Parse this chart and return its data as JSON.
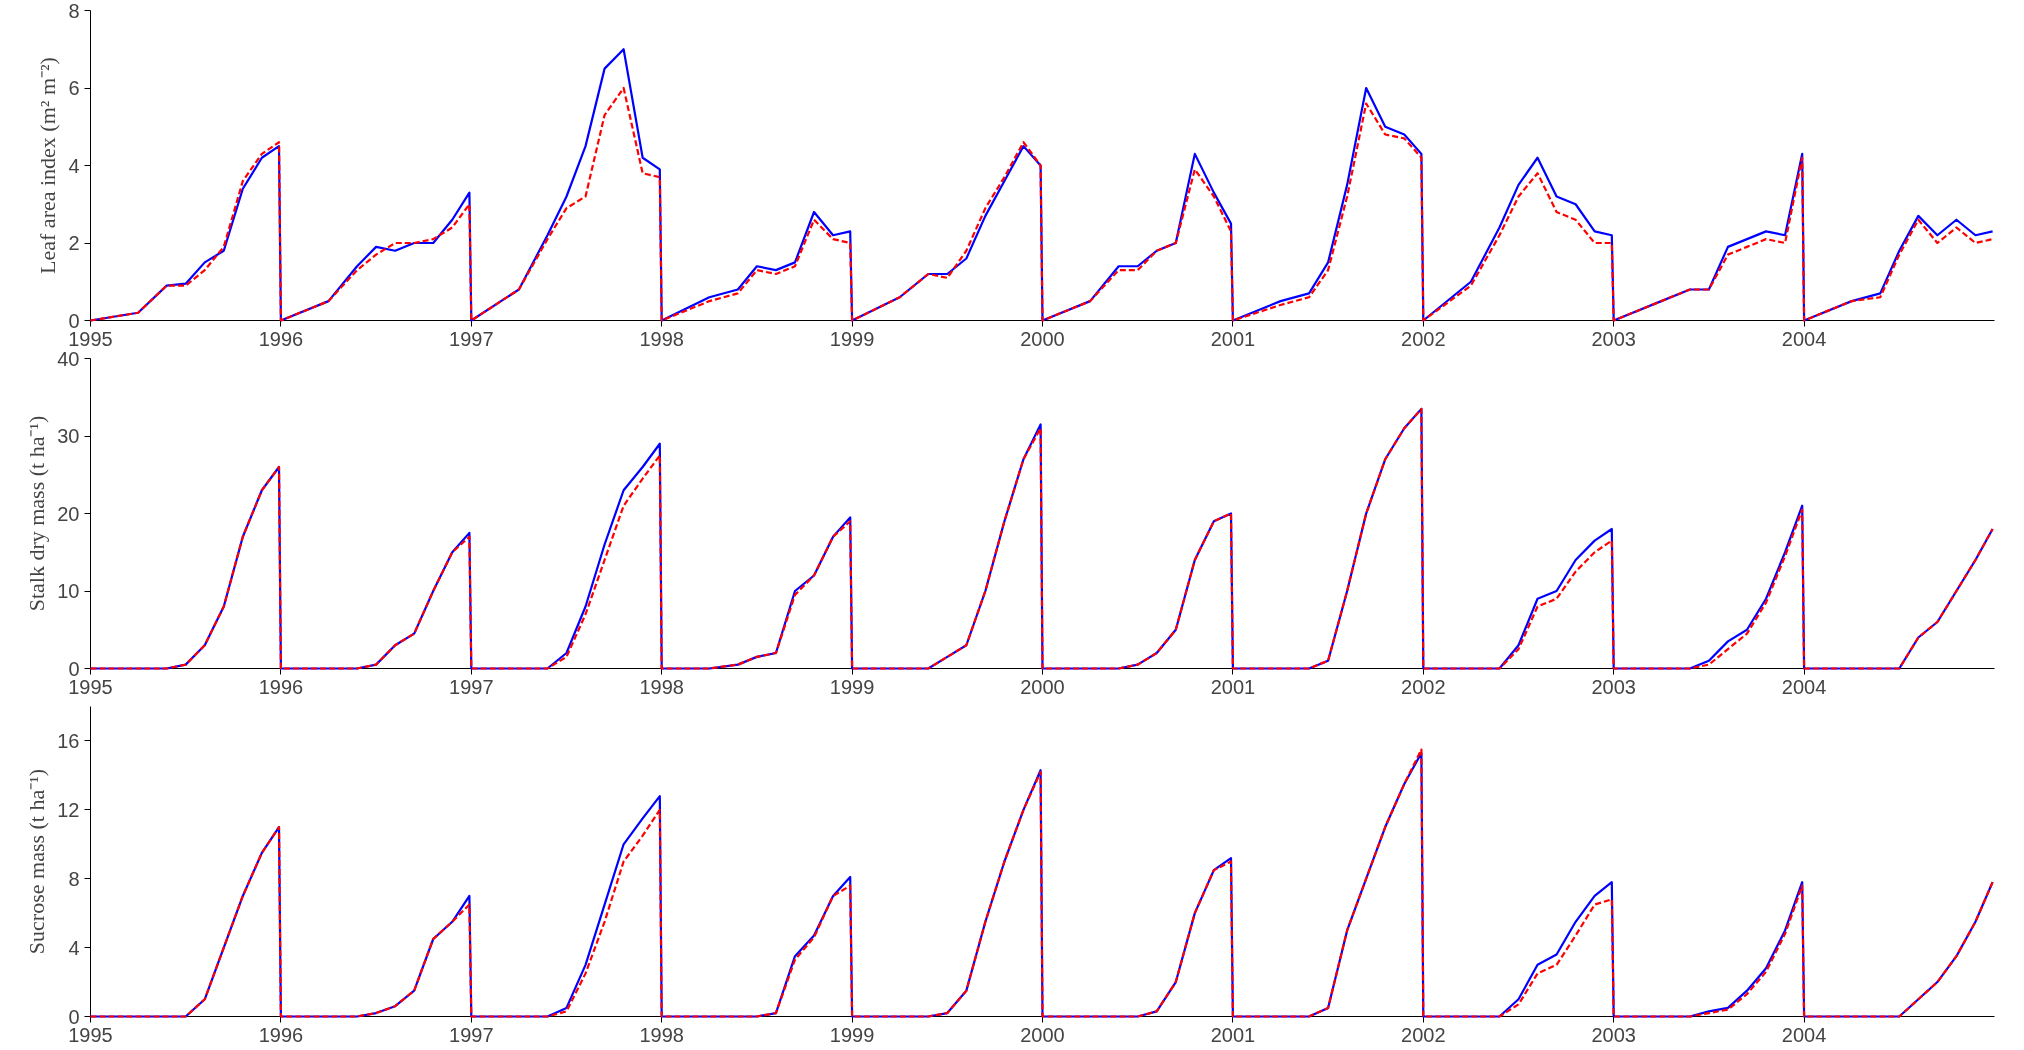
{
  "chart_data": [
    {
      "type": "line",
      "ylabel": "Leaf area index (m² m⁻²)",
      "xlim": [
        1995,
        2005
      ],
      "xticks": [
        1995,
        1996,
        1997,
        1998,
        1999,
        2000,
        2001,
        2002,
        2003,
        2004
      ],
      "ylim": [
        0,
        8
      ],
      "yticks": [
        0,
        2,
        4,
        6,
        8
      ],
      "grid": false,
      "x": [
        1995,
        1995.25,
        1995.4,
        1995.5,
        1995.6,
        1995.7,
        1995.8,
        1995.9,
        1995.99,
        1996,
        1996.25,
        1996.4,
        1996.5,
        1996.6,
        1996.7,
        1996.8,
        1996.9,
        1996.99,
        1997,
        1997.25,
        1997.4,
        1997.5,
        1997.6,
        1997.7,
        1997.8,
        1997.9,
        1997.99,
        1998,
        1998.25,
        1998.4,
        1998.5,
        1998.6,
        1998.7,
        1998.8,
        1998.9,
        1998.99,
        1999,
        1999.25,
        1999.4,
        1999.5,
        1999.6,
        1999.7,
        1999.8,
        1999.9,
        1999.99,
        2000,
        2000.25,
        2000.4,
        2000.5,
        2000.6,
        2000.7,
        2000.8,
        2000.9,
        2000.99,
        2001,
        2001.25,
        2001.4,
        2001.5,
        2001.6,
        2001.7,
        2001.8,
        2001.9,
        2001.99,
        2002,
        2002.25,
        2002.4,
        2002.5,
        2002.6,
        2002.7,
        2002.8,
        2002.9,
        2002.99,
        2003,
        2003.25,
        2003.4,
        2003.5,
        2003.6,
        2003.7,
        2003.8,
        2003.9,
        2003.99,
        2004,
        2004.25,
        2004.4,
        2004.5,
        2004.6,
        2004.7,
        2004.8,
        2004.9,
        2004.99
      ],
      "series": [
        {
          "color": "#0000ff",
          "line_style": "solid",
          "values": [
            0,
            0.2,
            0.9,
            0.95,
            1.5,
            1.8,
            3.4,
            4.2,
            4.5,
            0,
            0.5,
            1.4,
            1.9,
            1.8,
            2.0,
            2.0,
            2.6,
            3.3,
            0,
            0.8,
            2.2,
            3.2,
            4.5,
            6.5,
            7.0,
            4.2,
            3.9,
            0,
            0.6,
            0.8,
            1.4,
            1.3,
            1.5,
            2.8,
            2.2,
            2.3,
            0,
            0.6,
            1.2,
            1.2,
            1.6,
            2.7,
            3.6,
            4.5,
            4.0,
            0,
            0.5,
            1.4,
            1.4,
            1.8,
            2.0,
            4.3,
            3.3,
            2.5,
            0,
            0.5,
            0.7,
            1.5,
            3.5,
            6.0,
            5.0,
            4.8,
            4.3,
            0,
            1.0,
            2.4,
            3.5,
            4.2,
            3.2,
            3.0,
            2.3,
            2.2,
            0,
            0.5,
            0.8,
            0.8,
            1.9,
            2.1,
            2.3,
            2.2,
            4.3,
            0,
            0.5,
            0.7,
            1.8,
            2.7,
            2.2,
            2.6,
            2.2,
            2.3
          ]
        },
        {
          "color": "#ff0000",
          "line_style": "dashed",
          "values": [
            0,
            0.2,
            0.9,
            0.9,
            1.3,
            1.9,
            3.6,
            4.3,
            4.6,
            0,
            0.5,
            1.3,
            1.7,
            2.0,
            2.0,
            2.1,
            2.4,
            3.0,
            0,
            0.8,
            2.1,
            2.9,
            3.2,
            5.3,
            6.0,
            3.8,
            3.7,
            0,
            0.5,
            0.7,
            1.3,
            1.2,
            1.4,
            2.6,
            2.1,
            2.0,
            0,
            0.6,
            1.2,
            1.1,
            1.8,
            2.9,
            3.7,
            4.6,
            4.0,
            0,
            0.5,
            1.3,
            1.3,
            1.8,
            2.0,
            3.9,
            3.2,
            2.3,
            0,
            0.4,
            0.6,
            1.3,
            3.2,
            5.6,
            4.8,
            4.7,
            4.2,
            0,
            0.9,
            2.2,
            3.2,
            3.8,
            2.8,
            2.6,
            2.0,
            2.0,
            0,
            0.5,
            0.8,
            0.8,
            1.7,
            1.9,
            2.1,
            2.0,
            4.2,
            0,
            0.5,
            0.6,
            1.7,
            2.6,
            2.0,
            2.4,
            2.0,
            2.1
          ]
        }
      ]
    },
    {
      "type": "line",
      "ylabel": "Stalk dry mass (t ha⁻¹)",
      "xlim": [
        1995,
        2005
      ],
      "xticks": [
        1995,
        1996,
        1997,
        1998,
        1999,
        2000,
        2001,
        2002,
        2003,
        2004
      ],
      "ylim": [
        0,
        40
      ],
      "yticks": [
        0,
        10,
        20,
        30,
        40
      ],
      "grid": false,
      "x": [
        1995,
        1995.25,
        1995.4,
        1995.5,
        1995.6,
        1995.7,
        1995.8,
        1995.9,
        1995.99,
        1996,
        1996.25,
        1996.4,
        1996.5,
        1996.6,
        1996.7,
        1996.8,
        1996.9,
        1996.99,
        1997,
        1997.25,
        1997.4,
        1997.5,
        1997.6,
        1997.7,
        1997.8,
        1997.9,
        1997.99,
        1998,
        1998.25,
        1998.4,
        1998.5,
        1998.6,
        1998.7,
        1998.8,
        1998.9,
        1998.99,
        1999,
        1999.25,
        1999.4,
        1999.5,
        1999.6,
        1999.7,
        1999.8,
        1999.9,
        1999.99,
        2000,
        2000.25,
        2000.4,
        2000.5,
        2000.6,
        2000.7,
        2000.8,
        2000.9,
        2000.99,
        2001,
        2001.25,
        2001.4,
        2001.5,
        2001.6,
        2001.7,
        2001.8,
        2001.9,
        2001.99,
        2002,
        2002.25,
        2002.4,
        2002.5,
        2002.6,
        2002.7,
        2002.8,
        2002.9,
        2002.99,
        2003,
        2003.25,
        2003.4,
        2003.5,
        2003.6,
        2003.7,
        2003.8,
        2003.9,
        2003.99,
        2004,
        2004.25,
        2004.4,
        2004.5,
        2004.6,
        2004.7,
        2004.8,
        2004.9,
        2004.99
      ],
      "series": [
        {
          "color": "#0000ff",
          "line_style": "solid",
          "values": [
            0,
            0,
            0,
            0.5,
            3,
            8,
            17,
            23,
            26,
            0,
            0,
            0,
            0.5,
            3,
            4.5,
            10,
            15,
            17.5,
            0,
            0,
            0,
            2,
            8,
            16,
            23,
            26,
            29,
            0,
            0,
            0.5,
            1.5,
            2,
            10,
            12,
            17,
            19.5,
            0,
            0,
            0,
            1.5,
            3,
            10,
            19,
            27,
            31.5,
            0,
            0,
            0,
            0.5,
            2,
            5,
            14,
            19,
            20,
            0,
            0,
            0,
            1,
            10,
            20,
            27,
            31,
            33.5,
            0,
            0,
            0,
            3,
            9,
            10,
            14,
            16.5,
            18,
            0,
            0,
            0,
            1,
            3.5,
            5,
            9,
            15,
            21,
            0,
            0,
            0,
            0,
            4,
            6,
            10,
            14,
            18
          ]
        },
        {
          "color": "#ff0000",
          "line_style": "dashed",
          "values": [
            0,
            0,
            0,
            0.5,
            3,
            8,
            17,
            23,
            26,
            0,
            0,
            0,
            0.5,
            3,
            4.5,
            10,
            15,
            17,
            0,
            0,
            0,
            1.5,
            7,
            14,
            21,
            24.5,
            27.5,
            0,
            0,
            0.5,
            1.5,
            2,
            9.5,
            12,
            17,
            19,
            0,
            0,
            0,
            1.5,
            3,
            10,
            19,
            27,
            31,
            0,
            0,
            0,
            0.5,
            2,
            5,
            14,
            19,
            20,
            0,
            0,
            0,
            1,
            10,
            20,
            27,
            31,
            33.5,
            0,
            0,
            0,
            2.5,
            8,
            9,
            12.5,
            15,
            16.5,
            0,
            0,
            0,
            0.5,
            2.5,
            4.5,
            8.5,
            14.5,
            20.5,
            0,
            0,
            0,
            0,
            4,
            6,
            10,
            14,
            18
          ]
        }
      ]
    },
    {
      "type": "line",
      "ylabel": "Sucrose mass (t ha⁻¹)",
      "xlim": [
        1995,
        2005
      ],
      "xticks": [
        1995,
        1996,
        1997,
        1998,
        1999,
        2000,
        2001,
        2002,
        2003,
        2004
      ],
      "ylim": [
        0,
        18
      ],
      "yticks": [
        0,
        4,
        8,
        12,
        16
      ],
      "grid": false,
      "x": [
        1995,
        1995.25,
        1995.4,
        1995.5,
        1995.6,
        1995.7,
        1995.8,
        1995.9,
        1995.99,
        1996,
        1996.25,
        1996.4,
        1996.5,
        1996.6,
        1996.7,
        1996.8,
        1996.9,
        1996.99,
        1997,
        1997.25,
        1997.4,
        1997.5,
        1997.6,
        1997.7,
        1997.8,
        1997.9,
        1997.99,
        1998,
        1998.25,
        1998.4,
        1998.5,
        1998.6,
        1998.7,
        1998.8,
        1998.9,
        1998.99,
        1999,
        1999.25,
        1999.4,
        1999.5,
        1999.6,
        1999.7,
        1999.8,
        1999.9,
        1999.99,
        2000,
        2000.25,
        2000.4,
        2000.5,
        2000.6,
        2000.7,
        2000.8,
        2000.9,
        2000.99,
        2001,
        2001.25,
        2001.4,
        2001.5,
        2001.6,
        2001.7,
        2001.8,
        2001.9,
        2001.99,
        2002,
        2002.25,
        2002.4,
        2002.5,
        2002.6,
        2002.7,
        2002.8,
        2002.9,
        2002.99,
        2003,
        2003.25,
        2003.4,
        2003.5,
        2003.6,
        2003.7,
        2003.8,
        2003.9,
        2003.99,
        2004,
        2004.25,
        2004.4,
        2004.5,
        2004.6,
        2004.7,
        2004.8,
        2004.9,
        2004.99
      ],
      "series": [
        {
          "color": "#0000ff",
          "line_style": "solid",
          "values": [
            0,
            0,
            0,
            0,
            1,
            4,
            7,
            9.5,
            11,
            0,
            0,
            0,
            0.2,
            0.6,
            1.5,
            4.5,
            5.5,
            7,
            0,
            0,
            0,
            0.5,
            3,
            6.5,
            10,
            11.5,
            12.8,
            0,
            0,
            0,
            0,
            0.2,
            3.5,
            4.7,
            7,
            8.1,
            0,
            0,
            0,
            0.2,
            1.5,
            5.5,
            9,
            12,
            14.3,
            0,
            0,
            0,
            0,
            0.3,
            2,
            6,
            8.5,
            9.2,
            0,
            0,
            0,
            0.5,
            5,
            8,
            11,
            13.5,
            15.3,
            0,
            0,
            0,
            1,
            3,
            3.6,
            5.5,
            7,
            7.8,
            0,
            0,
            0,
            0.3,
            0.5,
            1.5,
            2.8,
            5,
            7.8,
            0,
            0,
            0,
            0,
            1,
            2,
            3.5,
            5.5,
            7.8
          ]
        },
        {
          "color": "#ff0000",
          "line_style": "dashed",
          "values": [
            0,
            0,
            0,
            0,
            1,
            4,
            7,
            9.5,
            11,
            0,
            0,
            0,
            0.2,
            0.6,
            1.5,
            4.5,
            5.5,
            6.5,
            0,
            0,
            0,
            0.3,
            2.5,
            5.5,
            9,
            10.5,
            12,
            0,
            0,
            0,
            0,
            0.2,
            3.3,
            4.6,
            7,
            7.6,
            0,
            0,
            0,
            0.2,
            1.5,
            5.5,
            9,
            12,
            14.2,
            0,
            0,
            0,
            0,
            0.3,
            2,
            6,
            8.5,
            9,
            0,
            0,
            0,
            0.5,
            5,
            8,
            11,
            13.5,
            15.5,
            0,
            0,
            0,
            0.7,
            2.5,
            3,
            4.7,
            6.5,
            6.8,
            0,
            0,
            0,
            0.2,
            0.4,
            1.3,
            2.6,
            4.8,
            7.6,
            0,
            0,
            0,
            0,
            1,
            2,
            3.5,
            5.5,
            7.8
          ]
        }
      ]
    }
  ]
}
